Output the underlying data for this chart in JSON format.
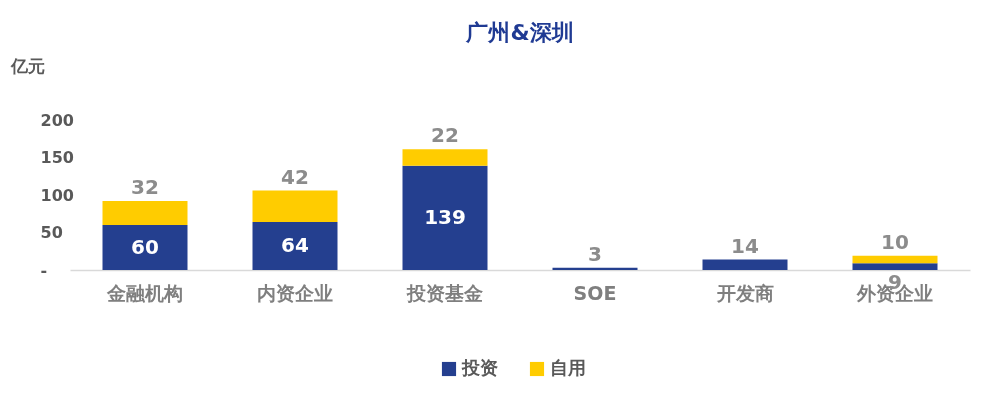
{
  "chart_data": {
    "type": "bar",
    "title": "广州&深圳",
    "ylabel": "亿元",
    "stacked": true,
    "categories": [
      "金融机构",
      "内资企业",
      "投资基金",
      "SOE",
      "开发商",
      "外资企业"
    ],
    "series": [
      {
        "name": "投资",
        "color": "#243f8f",
        "values": [
          60,
          64,
          139,
          3,
          14,
          9
        ]
      },
      {
        "name": "自用",
        "color": "#ffcc00",
        "values": [
          32,
          42,
          22,
          null,
          null,
          10
        ]
      }
    ],
    "ylim": [
      0,
      200
    ],
    "yticks": [
      {
        "value": 0,
        "label": "-"
      },
      50,
      100,
      150,
      200
    ],
    "grid": false,
    "legend": "bottom",
    "data_labels": true
  }
}
